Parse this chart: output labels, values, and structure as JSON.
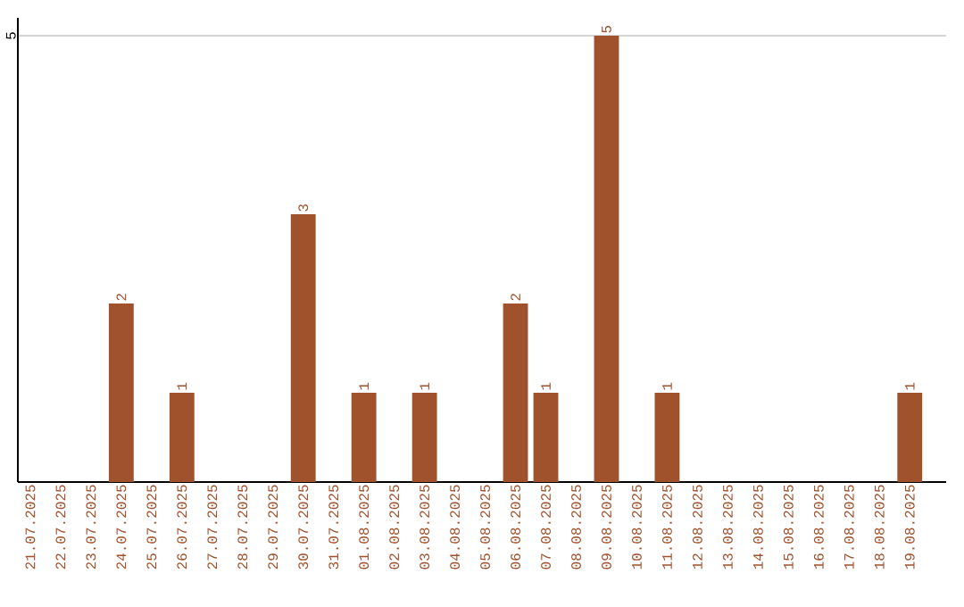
{
  "chart_data": {
    "type": "bar",
    "categories": [
      "21.07.2025",
      "22.07.2025",
      "23.07.2025",
      "24.07.2025",
      "25.07.2025",
      "26.07.2025",
      "27.07.2025",
      "28.07.2025",
      "29.07.2025",
      "30.07.2025",
      "31.07.2025",
      "01.08.2025",
      "02.08.2025",
      "03.08.2025",
      "04.08.2025",
      "05.08.2025",
      "06.08.2025",
      "07.08.2025",
      "08.08.2025",
      "09.08.2025",
      "10.08.2025",
      "11.08.2025",
      "12.08.2025",
      "13.08.2025",
      "14.08.2025",
      "15.08.2025",
      "16.08.2025",
      "17.08.2025",
      "18.08.2025",
      "19.08.2025"
    ],
    "values": [
      null,
      null,
      null,
      2,
      null,
      1,
      null,
      null,
      null,
      3,
      null,
      1,
      null,
      1,
      null,
      null,
      2,
      1,
      null,
      5,
      null,
      1,
      null,
      null,
      null,
      null,
      null,
      null,
      null,
      1
    ],
    "color": "#a0522d",
    "ylim": [
      0,
      5.2
    ],
    "yticks": [
      5
    ],
    "grid": "y",
    "data_labels": true
  }
}
